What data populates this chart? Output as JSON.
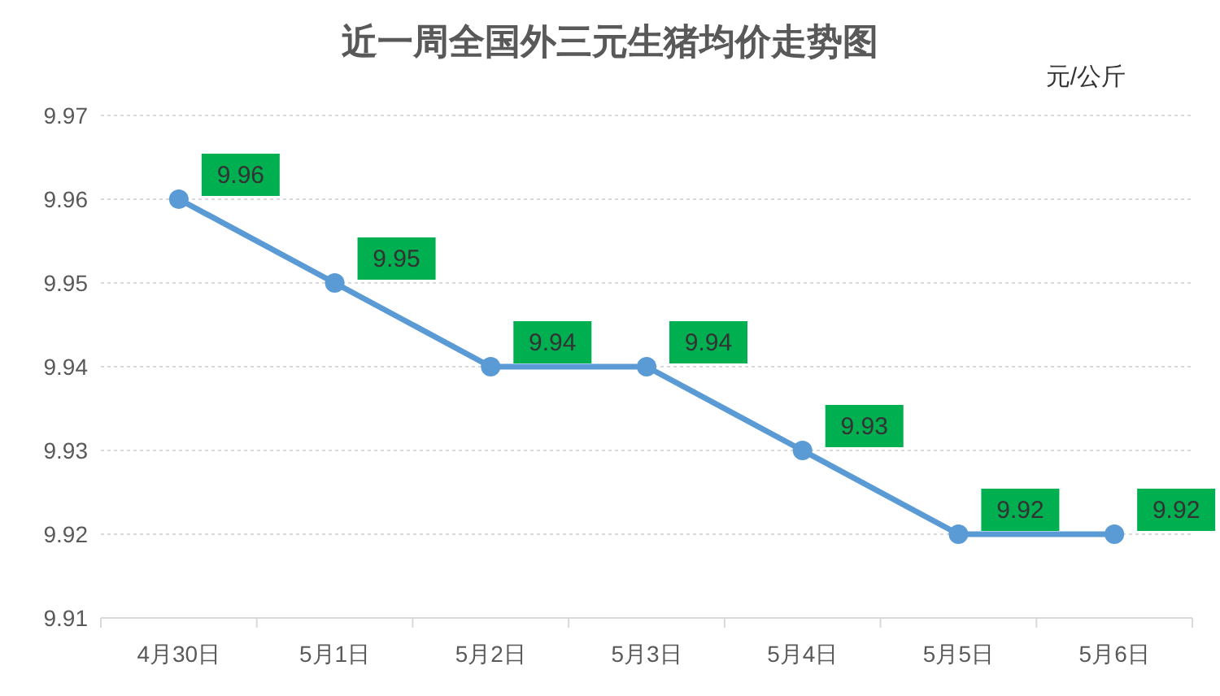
{
  "chart_data": {
    "type": "line",
    "title": "近一周全国外三元生猪均价走势图",
    "ylabel": "元/公斤",
    "categories": [
      "4月30日",
      "5月1日",
      "5月2日",
      "5月3日",
      "5月4日",
      "5月5日",
      "5月6日"
    ],
    "series": [
      {
        "color": "#5b9bd5",
        "values": [
          9.96,
          9.95,
          9.94,
          9.94,
          9.93,
          9.92,
          9.92
        ]
      }
    ],
    "ylim": [
      9.91,
      9.97
    ],
    "yticks": [
      9.91,
      9.92,
      9.93,
      9.94,
      9.95,
      9.96,
      9.97
    ],
    "grid": "y",
    "marker": "circle",
    "line_style": "solid",
    "data_labels": true
  }
}
